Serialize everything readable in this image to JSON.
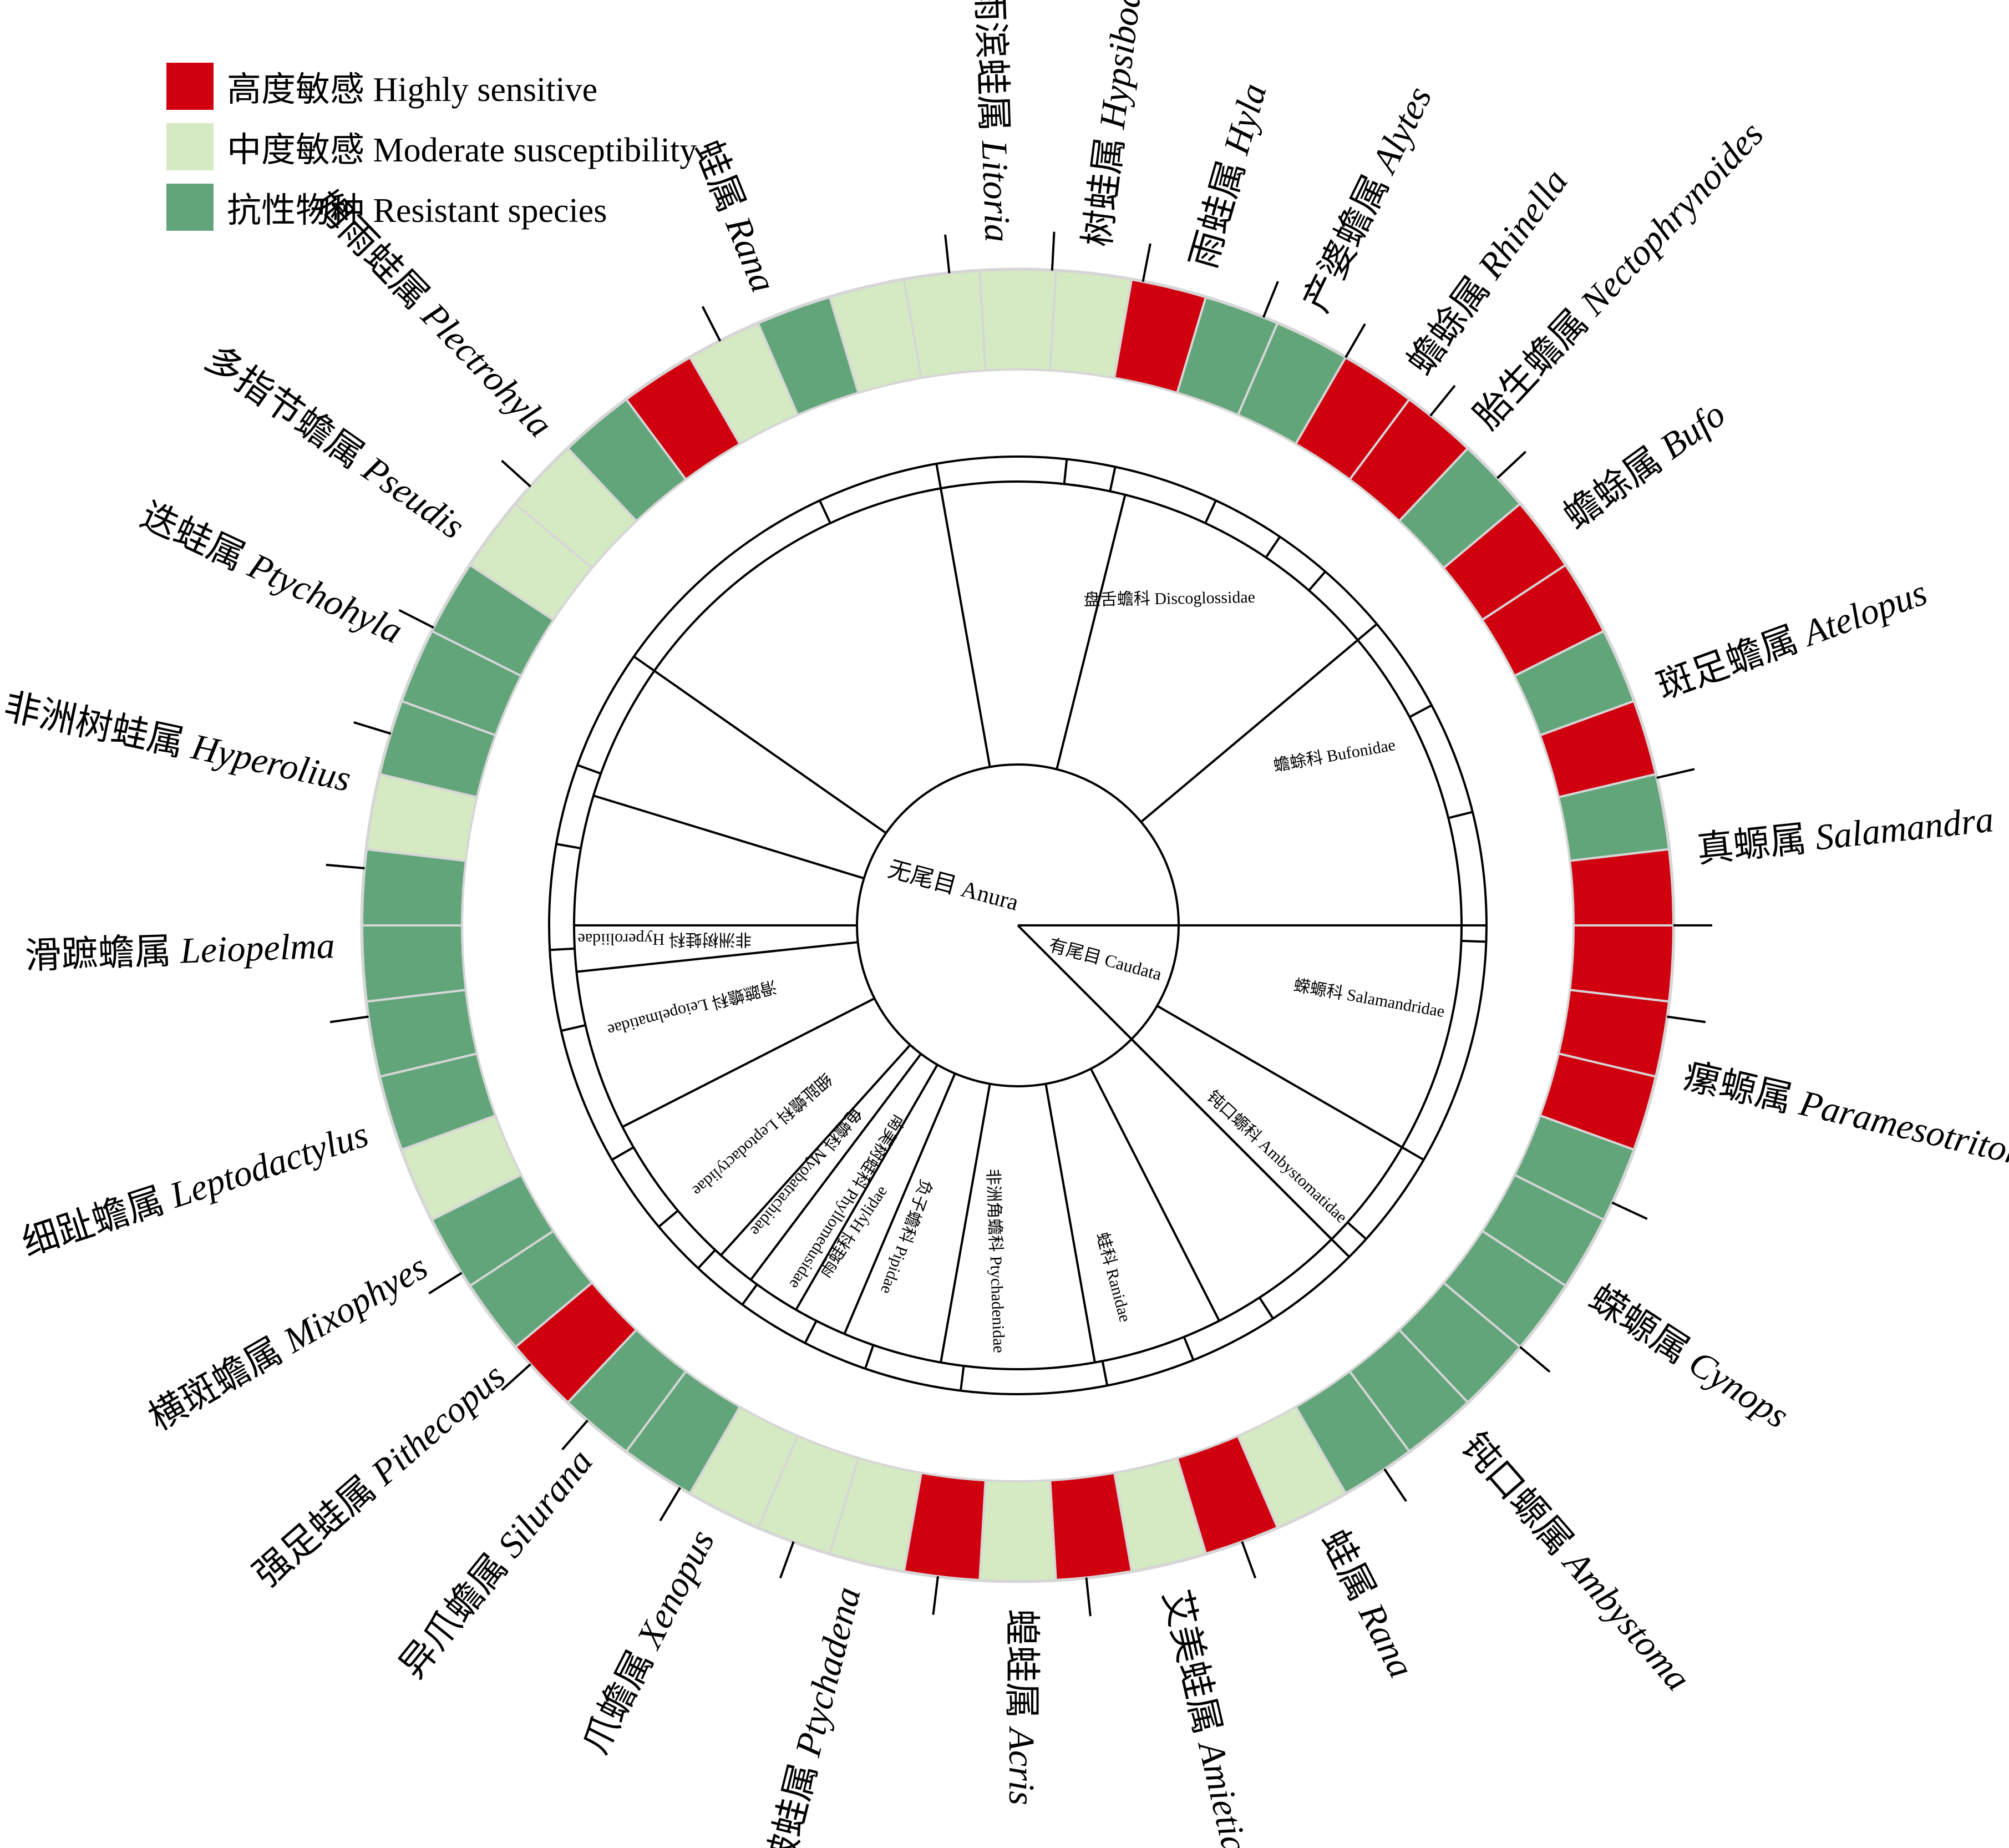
{
  "legend": {
    "items": [
      {
        "label": "高度敏感 Highly sensitive",
        "color": "#d0000f"
      },
      {
        "label": "中度敏感 Moderate susceptibility",
        "color": "#d5e9c2"
      },
      {
        "label": "抗性物种 Resistant species",
        "color": "#63a57b"
      }
    ]
  },
  "colors": {
    "H": "#d0000f",
    "M": "#d5e9c2",
    "R": "#63a57b",
    "sep": "#d6d6d6"
  },
  "root": {
    "label": "无尾目 Anura",
    "caudata_label": "有尾目 Caudata"
  },
  "families": [
    {
      "label": "雨蛙科 Hylidae",
      "range": [
        160,
        370
      ]
    },
    {
      "label": "盘舌蟾科 Discoglossidae",
      "range": [
        370,
        410
      ]
    },
    {
      "label": "蟾蜍科 Bufonidae",
      "range": [
        410,
        450
      ]
    },
    {
      "label": "蝾螈科 Salamandridae",
      "range": [
        0,
        35
      ]
    },
    {
      "label": "钝口螈科 Ambystomatidae",
      "range": [
        35,
        55
      ]
    },
    {
      "label": "蛙科 Ranidae",
      "range": [
        55,
        100
      ]
    },
    {
      "label": "非洲角蟾科 Ptychadenidae",
      "range": [
        100,
        115
      ]
    },
    {
      "label": "负子蟾科 Pipidae",
      "range": [
        115,
        130
      ]
    },
    {
      "label": "南美树蛙科 Phyllomedusidae",
      "range": [
        130,
        135
      ]
    },
    {
      "label": "龟蟾科 Myobatrachidae",
      "range": [
        135,
        140
      ]
    },
    {
      "label": "细趾蟾科 Leptodactylidae",
      "range": [
        140,
        145
      ]
    },
    {
      "label": "滑蹠蟾科 Leiopelmatidae",
      "range": [
        145,
        170
      ]
    },
    {
      "label": "非洲树蛙科 Hyperoliidae",
      "range": [
        170,
        180
      ]
    }
  ],
  "sectors": [
    "M",
    "M",
    "M",
    "H",
    "R",
    "R",
    "H",
    "H",
    "R",
    "H",
    "H",
    "R",
    "H",
    "R",
    "H",
    "H",
    "H",
    "H",
    "R",
    "R",
    "R",
    "R",
    "R",
    "R",
    "M",
    "H",
    "M",
    "H",
    "M",
    "H",
    "M",
    "M",
    "M",
    "R",
    "R",
    "H",
    "R",
    "R",
    "M",
    "R",
    "R",
    "R",
    "R",
    "M",
    "R",
    "R",
    "R",
    "M",
    "M",
    "R",
    "H",
    "M",
    "R",
    "M"
  ],
  "genera": [
    {
      "cn": "雨滨蛙属",
      "la": "Litoria"
    },
    {
      "cn": "树蛙属",
      "la": "Hypsiboas"
    },
    {
      "cn": "雨蛙属",
      "la": "Hyla"
    },
    {
      "cn": "产婆蟾属",
      "la": "Alytes"
    },
    {
      "cn": "蟾蜍属",
      "la": "Rhinella"
    },
    {
      "cn": "胎生蟾属",
      "la": "Nectophrynoides"
    },
    {
      "cn": "蟾蜍属",
      "la": "Bufo"
    },
    {
      "cn": "斑足蟾属",
      "la": "Atelopus"
    },
    {
      "cn": "真螈属",
      "la": "Salamandra"
    },
    {
      "cn": "瘰螈属",
      "la": "Paramesotriton"
    },
    {
      "cn": "蝾螈属",
      "la": "Cynops"
    },
    {
      "cn": "钝口螈属",
      "la": "Ambystoma"
    },
    {
      "cn": "蛙属",
      "la": "Rana"
    },
    {
      "cn": "艾美蛙属",
      "la": "Amietia"
    },
    {
      "cn": "蝗蛙属",
      "la": "Acris"
    },
    {
      "cn": "皱蛙属",
      "la": "Ptychadena"
    },
    {
      "cn": "爪蟾属",
      "la": "Xenopus"
    },
    {
      "cn": "异爪蟾属",
      "la": "Silurana"
    },
    {
      "cn": "强足蛙属",
      "la": "Pithecopus"
    },
    {
      "cn": "横斑蟾属",
      "la": "Mixophyes"
    },
    {
      "cn": "细趾蟾属",
      "la": "Leptodactylus"
    },
    {
      "cn": "滑蹠蟾属",
      "la": "Leiopelma"
    },
    {
      "cn": "非洲树蛙属",
      "la": "Hyperolius"
    },
    {
      "cn": "迭蛙属",
      "la": "Ptychohyla"
    },
    {
      "cn": "多指节蟾属",
      "la": "Pseudis"
    },
    {
      "cn": "姆雨蛙属",
      "la": "Plectrohyla"
    },
    {
      "cn": "蛙属",
      "la": "Rana"
    }
  ]
}
